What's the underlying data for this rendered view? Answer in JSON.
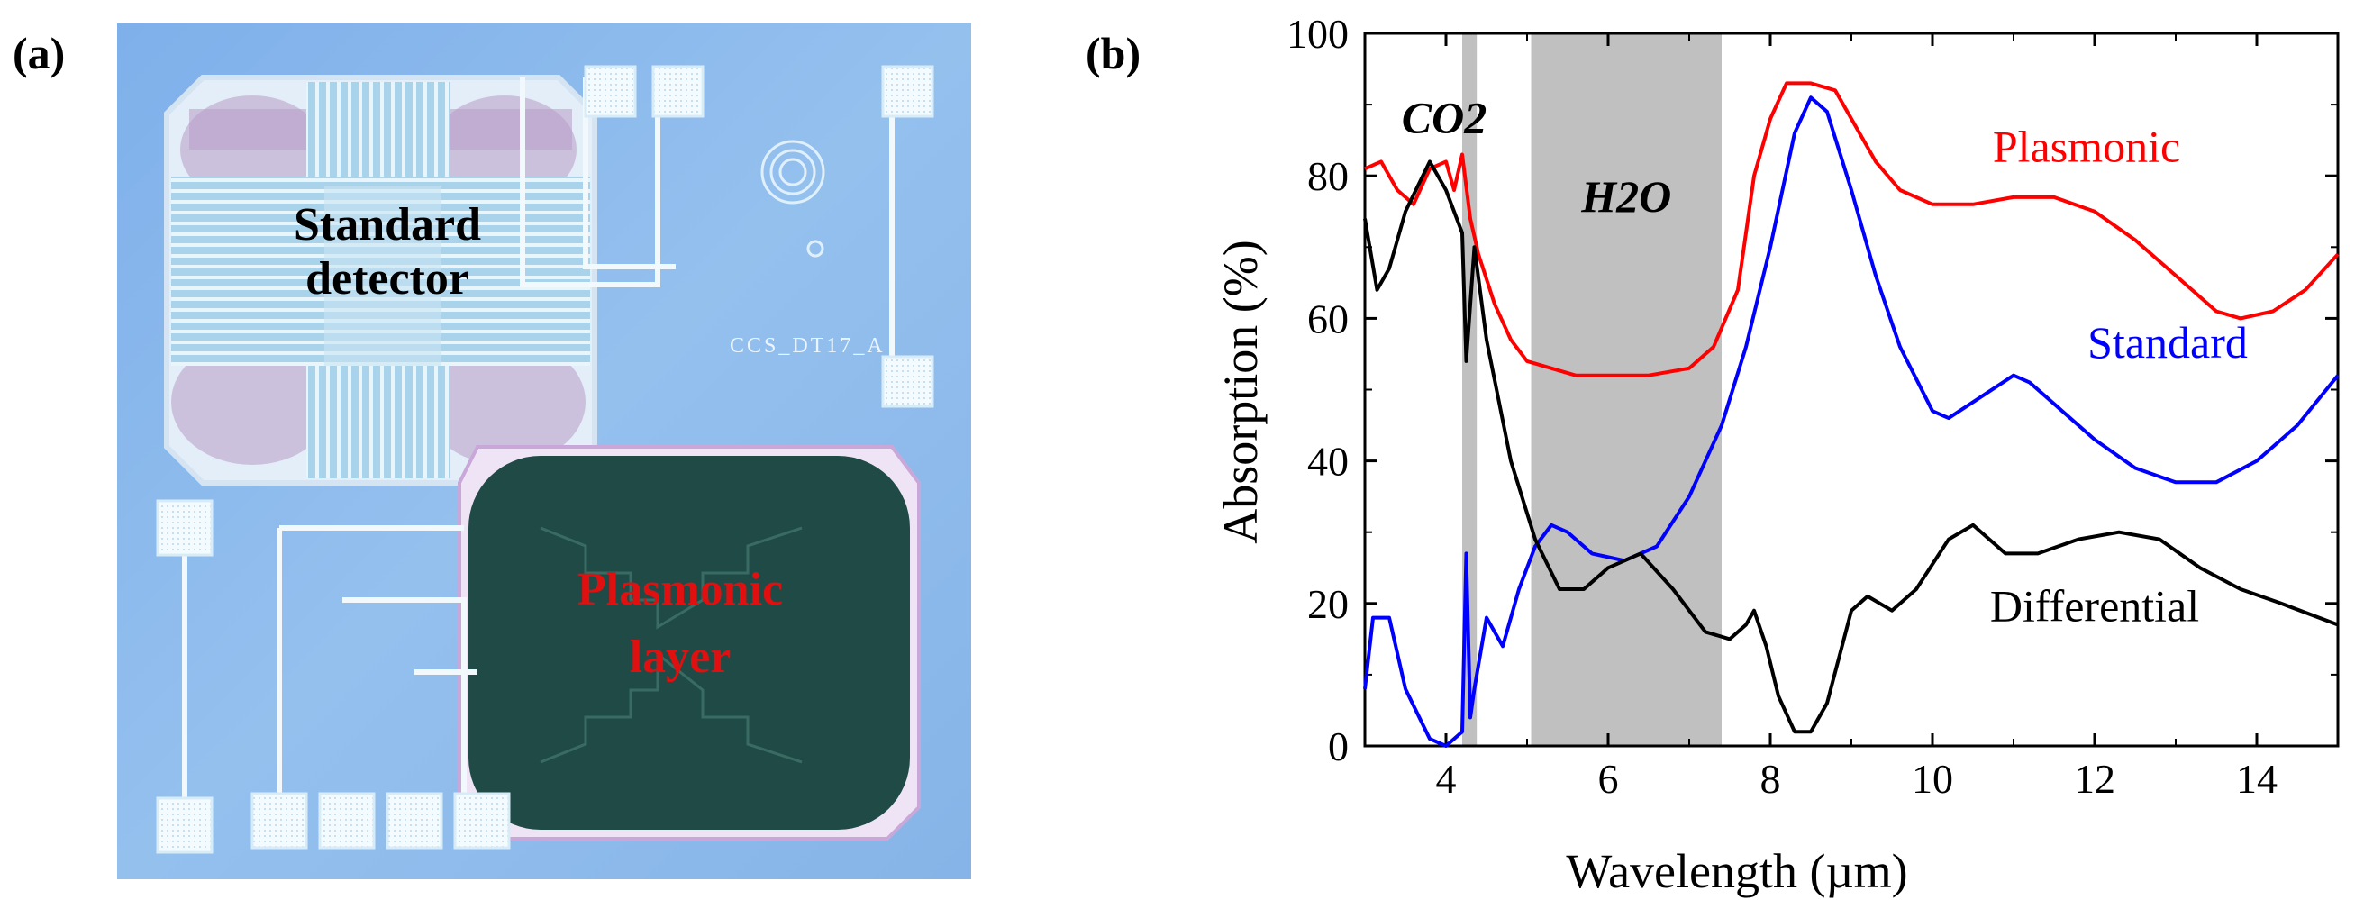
{
  "panels": {
    "a_label": "(a)",
    "b_label": "(b)"
  },
  "micrograph": {
    "standard_label_line1": "Standard",
    "standard_label_line2": "detector",
    "plasmonic_label_line1": "Plasmonic",
    "plasmonic_label_line2": "layer",
    "chip_id": "CCS_DT17_A",
    "colors": {
      "background": "#8fb9ec",
      "plasmonic_text": "#e01010",
      "plasmonic_pad": "#1f4a46"
    }
  },
  "chart_data": {
    "type": "line",
    "xlabel": "Wavelength (µm)",
    "ylabel": "Absorption (%)",
    "xlim": [
      3,
      15
    ],
    "ylim": [
      0,
      100
    ],
    "xticks": [
      4,
      6,
      8,
      10,
      12,
      14
    ],
    "yticks": [
      0,
      20,
      40,
      60,
      80,
      100
    ],
    "bands": [
      {
        "name": "CO2",
        "label": "CO2",
        "from": 4.2,
        "to": 4.38
      },
      {
        "name": "H2O",
        "label": "H2O",
        "from": 5.05,
        "to": 7.4
      }
    ],
    "series": [
      {
        "name": "Plasmonic",
        "color": "#ff0000",
        "x": [
          3,
          3.2,
          3.4,
          3.6,
          3.8,
          4.0,
          4.1,
          4.2,
          4.3,
          4.4,
          4.6,
          4.8,
          5.0,
          5.3,
          5.6,
          6.0,
          6.5,
          7.0,
          7.3,
          7.6,
          7.8,
          8.0,
          8.2,
          8.5,
          8.8,
          9.0,
          9.3,
          9.6,
          10.0,
          10.5,
          11.0,
          11.5,
          12.0,
          12.5,
          13.0,
          13.5,
          13.8,
          14.2,
          14.6,
          15.0
        ],
        "values": [
          81,
          82,
          78,
          76,
          81,
          82,
          78,
          83,
          74,
          69,
          62,
          57,
          54,
          53,
          52,
          52,
          52,
          53,
          56,
          64,
          80,
          88,
          93,
          93,
          92,
          88,
          82,
          78,
          76,
          76,
          77,
          77,
          75,
          71,
          66,
          61,
          60,
          61,
          64,
          69
        ]
      },
      {
        "name": "Standard",
        "color": "#0000ff",
        "x": [
          3,
          3.1,
          3.3,
          3.5,
          3.8,
          4.0,
          4.2,
          4.25,
          4.3,
          4.35,
          4.5,
          4.7,
          4.9,
          5.1,
          5.3,
          5.5,
          5.8,
          6.2,
          6.6,
          7.0,
          7.4,
          7.7,
          8.0,
          8.3,
          8.5,
          8.7,
          9.0,
          9.3,
          9.6,
          10.0,
          10.2,
          10.6,
          11.0,
          11.2,
          11.6,
          12.0,
          12.5,
          13.0,
          13.5,
          14.0,
          14.5,
          15.0
        ],
        "values": [
          8,
          18,
          18,
          8,
          1,
          0,
          2,
          27,
          4,
          8,
          18,
          14,
          22,
          28,
          31,
          30,
          27,
          26,
          28,
          35,
          45,
          56,
          70,
          86,
          91,
          89,
          78,
          66,
          56,
          47,
          46,
          49,
          52,
          51,
          47,
          43,
          39,
          37,
          37,
          40,
          45,
          52
        ]
      },
      {
        "name": "Differential",
        "color": "#000000",
        "x": [
          3,
          3.15,
          3.3,
          3.5,
          3.8,
          4.0,
          4.2,
          4.25,
          4.35,
          4.5,
          4.8,
          5.1,
          5.4,
          5.7,
          6.0,
          6.4,
          6.8,
          7.2,
          7.5,
          7.7,
          7.8,
          7.95,
          8.1,
          8.3,
          8.5,
          8.7,
          9.0,
          9.2,
          9.5,
          9.8,
          10.2,
          10.5,
          10.9,
          11.3,
          11.8,
          12.3,
          12.8,
          13.3,
          13.8,
          14.3,
          15.0
        ],
        "values": [
          74,
          64,
          67,
          75,
          82,
          78,
          72,
          54,
          70,
          57,
          40,
          29,
          22,
          22,
          25,
          27,
          22,
          16,
          15,
          17,
          19,
          14,
          7,
          2,
          2,
          6,
          19,
          21,
          19,
          22,
          29,
          31,
          27,
          27,
          29,
          30,
          29,
          25,
          22,
          20,
          17
        ]
      }
    ],
    "annotations": [
      {
        "text": "Plasmonic",
        "x": 11.9,
        "y": 82,
        "color": "#ff0000"
      },
      {
        "text": "Standard",
        "x": 12.9,
        "y": 54.5,
        "color": "#0000ff"
      },
      {
        "text": "Differential",
        "x": 12.0,
        "y": 17.5,
        "color": "#000000"
      }
    ]
  }
}
